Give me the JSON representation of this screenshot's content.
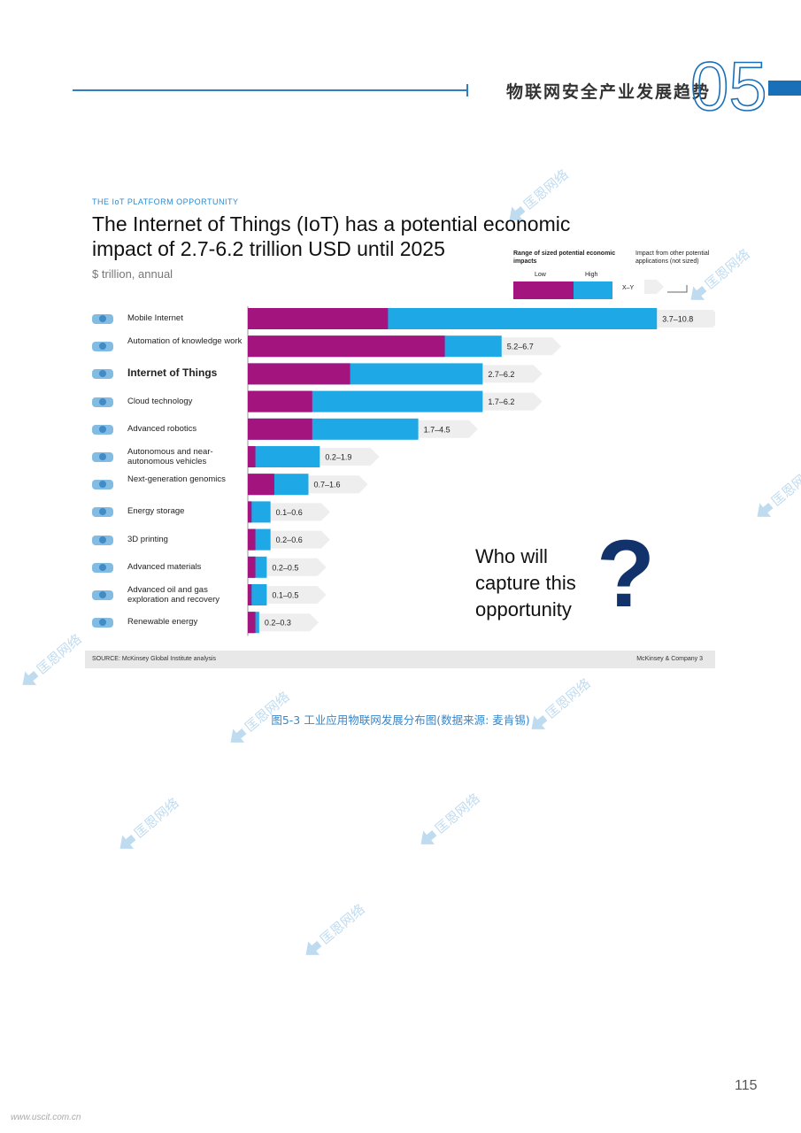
{
  "header": {
    "chapter_title": "物联网安全产业发展趋势",
    "chapter_number": "05",
    "accent_color": "#1a6fb9"
  },
  "figure": {
    "kicker": "THE IoT PLATFORM OPPORTUNITY",
    "title_line1": "The Internet of Things (IoT) has a potential economic",
    "title_line2": "impact of 2.7-6.2 trillion USD until 2025",
    "subtitle": "$ trillion, annual",
    "legend": {
      "range_label": "Range of sized potential economic impacts",
      "low_label": "Low",
      "high_label": "High",
      "other_label": "Impact from other potential applications (not sized)",
      "xy_label": "X–Y"
    },
    "callout": {
      "line1": "Who will",
      "line2": "capture this",
      "line3": "opportunity",
      "mark": "?"
    },
    "source": "SOURCE: McKinsey Global Institute analysis",
    "company": "McKinsey & Company   3"
  },
  "chart_data": {
    "type": "bar",
    "orientation": "horizontal",
    "title": "The Internet of Things (IoT) has a potential economic impact of 2.7-6.2 trillion USD until 2025",
    "units": "$ trillion, annual",
    "colors": {
      "low": "#a3147f",
      "high": "#1fa8e6"
    },
    "categories": [
      {
        "label": "Mobile Internet",
        "low": 3.7,
        "high": 10.8,
        "range_label": "3.7–10.8",
        "icon": "person-antenna-icon"
      },
      {
        "label": "Automation of knowledge work",
        "low": 5.2,
        "high": 6.7,
        "range_label": "5.2–6.7",
        "icon": "brain-icon"
      },
      {
        "label": "Internet of Things",
        "low": 2.7,
        "high": 6.2,
        "range_label": "2.7–6.2",
        "icon": "network-icon",
        "highlight": true
      },
      {
        "label": "Cloud technology",
        "low": 1.7,
        "high": 6.2,
        "range_label": "1.7–6.2",
        "icon": "cloud-icon"
      },
      {
        "label": "Advanced robotics",
        "low": 1.7,
        "high": 4.5,
        "range_label": "1.7–4.5",
        "icon": "robot-icon"
      },
      {
        "label": "Autonomous and near-autonomous vehicles",
        "low": 0.2,
        "high": 1.9,
        "range_label": "0.2–1.9",
        "icon": "car-icon"
      },
      {
        "label": "Next-generation genomics",
        "low": 0.7,
        "high": 1.6,
        "range_label": "0.7–1.6",
        "icon": "dna-icon"
      },
      {
        "label": "Energy storage",
        "low": 0.1,
        "high": 0.6,
        "range_label": "0.1–0.6",
        "icon": "battery-icon"
      },
      {
        "label": "3D printing",
        "low": 0.2,
        "high": 0.6,
        "range_label": "0.2–0.6",
        "icon": "printer-icon"
      },
      {
        "label": "Advanced materials",
        "low": 0.2,
        "high": 0.5,
        "range_label": "0.2–0.5",
        "icon": "materials-icon"
      },
      {
        "label": "Advanced oil and gas exploration and recovery",
        "low": 0.1,
        "high": 0.5,
        "range_label": "0.1–0.5",
        "icon": "oil-rig-icon"
      },
      {
        "label": "Renewable energy",
        "low": 0.2,
        "high": 0.3,
        "range_label": "0.2–0.3",
        "icon": "wind-turbine-icon"
      }
    ]
  },
  "caption": "图5-3 工业应用物联网发展分布图(数据来源: 麦肯锡)",
  "page_number": "115",
  "footer_url": "www.uscit.com.cn",
  "watermark_text": "匡恩网络"
}
